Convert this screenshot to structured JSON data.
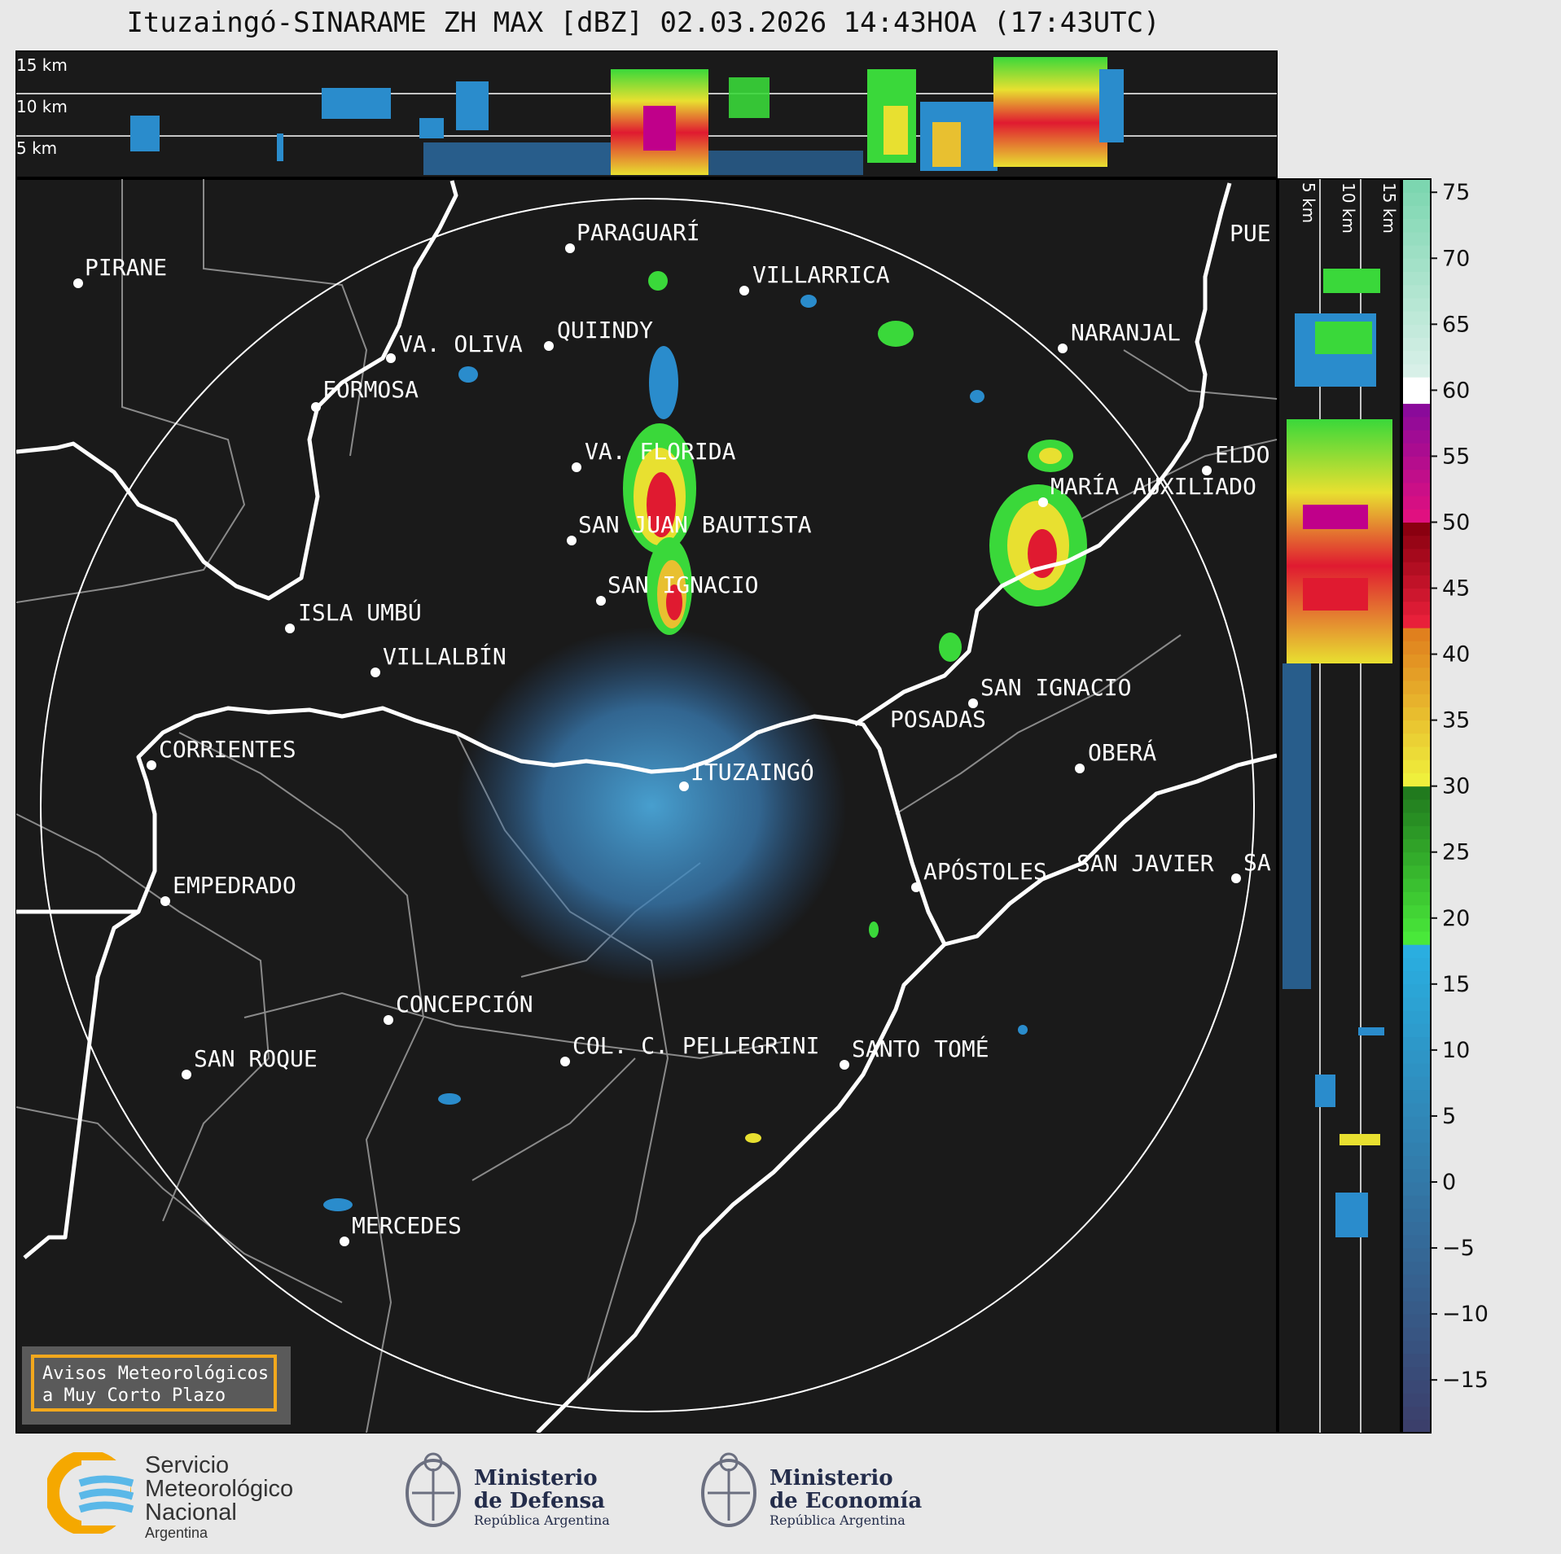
{
  "title": "Ituzaingó-SINARAME ZH MAX [dBZ] 02.03.2026 14:43HOA (17:43UTC)",
  "top_panel": {
    "height_labels": [
      "15 km",
      "10 km",
      "5 km"
    ]
  },
  "side_panel": {
    "height_labels": [
      "5 km",
      "10 km",
      "15 km"
    ]
  },
  "colorbar": {
    "unit": "dBZ",
    "range": [
      -19,
      76
    ],
    "ticks": [
      "75",
      "70",
      "65",
      "60",
      "55",
      "50",
      "45",
      "40",
      "35",
      "30",
      "25",
      "20",
      "15",
      "10",
      "5",
      "0",
      "−5",
      "−10",
      "−15"
    ],
    "tick_values": [
      75,
      70,
      65,
      60,
      55,
      50,
      45,
      40,
      35,
      30,
      25,
      20,
      15,
      10,
      5,
      0,
      -5,
      -10,
      -15
    ],
    "color_stops": [
      {
        "from": -19,
        "to": 18,
        "color_low": "#3b3f6b",
        "color_high": "#2aaee0"
      },
      {
        "from": 18,
        "to": 30,
        "color_low": "#49e83a",
        "color_high": "#217a1e"
      },
      {
        "from": 30,
        "to": 42,
        "color_low": "#efef3c",
        "color_high": "#e0801e"
      },
      {
        "from": 42,
        "to": 50,
        "color_low": "#e8203a",
        "color_high": "#8a0010"
      },
      {
        "from": 50,
        "to": 59,
        "color_low": "#e01080",
        "color_high": "#8a0a9a"
      },
      {
        "from": 59,
        "to": 61,
        "color_low": "#ffffff",
        "color_high": "#ffffff"
      },
      {
        "from": 61,
        "to": 76,
        "color_low": "#d8f0e8",
        "color_high": "#7cd6b0"
      }
    ]
  },
  "map": {
    "radar_site": "ITUZAINGÓ",
    "cities": [
      {
        "name": "PIRANE"
      },
      {
        "name": "PARAGUARÍ"
      },
      {
        "name": "VILLARRICA"
      },
      {
        "name": "QUIINDY"
      },
      {
        "name": "VA. OLIVA"
      },
      {
        "name": "FORMOSA"
      },
      {
        "name": "NARANJAL"
      },
      {
        "name": "PUE"
      },
      {
        "name": "VA. FLORIDA"
      },
      {
        "name": "ELDO"
      },
      {
        "name": "MARÍA AUXILIADO"
      },
      {
        "name": "SAN JUAN BAUTISTA"
      },
      {
        "name": "SAN IGNACIO"
      },
      {
        "name": "ISLA UMBÚ"
      },
      {
        "name": "VILLALBÍN"
      },
      {
        "name": "SAN IGNACIO"
      },
      {
        "name": "POSADAS"
      },
      {
        "name": "CORRIENTES"
      },
      {
        "name": "ITUZAINGÓ"
      },
      {
        "name": "OBERÁ"
      },
      {
        "name": "EMPEDRADO"
      },
      {
        "name": "APÓSTOLES"
      },
      {
        "name": "SAN JAVIER"
      },
      {
        "name": "SA"
      },
      {
        "name": "CONCEPCIÓN"
      },
      {
        "name": "COL. C. PELLEGRINI"
      },
      {
        "name": "SANTO TOMÉ"
      },
      {
        "name": "SAN ROQUE"
      },
      {
        "name": "MERCEDES"
      }
    ]
  },
  "warning_box": "Avisos Meteorológicos\na Muy Corto Plazo",
  "logos": {
    "smn": {
      "line1": "Servicio",
      "line2": "Meteorológico",
      "line3": "Nacional",
      "sub": "Argentina"
    },
    "defensa": {
      "line1": "Ministerio",
      "line2": "de Defensa",
      "sub": "República Argentina"
    },
    "economia": {
      "line1": "Ministerio",
      "line2": "de Economía",
      "sub": "República Argentina"
    }
  },
  "colors": {
    "map_bg": "#1a1a1a",
    "river": "#ffffff",
    "border": "#8a8a8a",
    "page_bg": "#e8e8e8",
    "warning_border": "#f2a81d"
  }
}
